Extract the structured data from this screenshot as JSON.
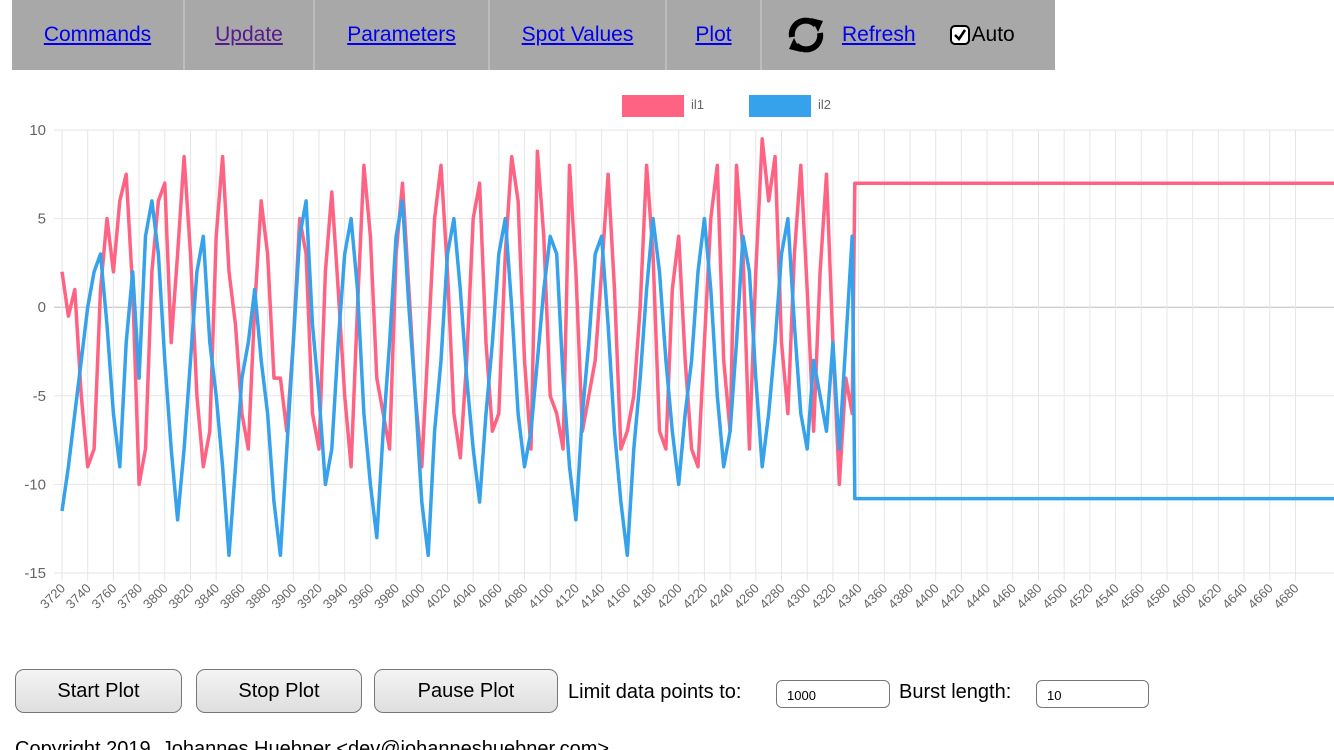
{
  "nav": {
    "items": [
      "Commands",
      "Update",
      "Parameters",
      "Spot Values",
      "Plot"
    ],
    "refresh": "Refresh",
    "auto": "Auto"
  },
  "chart_data": {
    "type": "line",
    "x": [
      3720,
      3725,
      3730,
      3735,
      3740,
      3745,
      3750,
      3755,
      3760,
      3765,
      3770,
      3775,
      3780,
      3785,
      3790,
      3795,
      3800,
      3805,
      3810,
      3815,
      3820,
      3825,
      3830,
      3835,
      3840,
      3845,
      3850,
      3855,
      3860,
      3865,
      3870,
      3875,
      3880,
      3885,
      3890,
      3895,
      3900,
      3905,
      3910,
      3915,
      3920,
      3925,
      3930,
      3935,
      3940,
      3945,
      3950,
      3955,
      3960,
      3965,
      3970,
      3975,
      3980,
      3985,
      3990,
      3995,
      4000,
      4005,
      4010,
      4015,
      4020,
      4025,
      4030,
      4035,
      4040,
      4045,
      4050,
      4055,
      4060,
      4065,
      4070,
      4075,
      4080,
      4085,
      4090,
      4095,
      4100,
      4105,
      4110,
      4115,
      4120,
      4125,
      4130,
      4135,
      4140,
      4145,
      4150,
      4155,
      4160,
      4165,
      4170,
      4175,
      4180,
      4185,
      4190,
      4195,
      4200,
      4205,
      4210,
      4215,
      4220,
      4225,
      4230,
      4235,
      4240,
      4245,
      4250,
      4255,
      4260,
      4265,
      4270,
      4275,
      4280,
      4285,
      4290,
      4295,
      4300,
      4305,
      4310,
      4315,
      4320,
      4325,
      4330,
      4335,
      4337,
      4710
    ],
    "series": [
      {
        "name": "il1",
        "color": "#ff6384",
        "values": [
          2,
          -0.5,
          1,
          -5,
          -9,
          -8,
          1,
          5,
          2,
          6,
          7.5,
          1,
          -10,
          -8,
          2,
          6,
          7,
          -2,
          3,
          8.5,
          3,
          -5,
          -9,
          -7,
          4,
          8.5,
          2,
          -1,
          -6,
          -8,
          0,
          6,
          3,
          -4,
          -4,
          -7,
          -2,
          5,
          3,
          -6,
          -8,
          2,
          6.5,
          1,
          -5,
          -9,
          0,
          8,
          4,
          -4,
          -6,
          -8,
          3,
          7,
          1,
          -5,
          -9,
          -2,
          5,
          8,
          2,
          -6,
          -8.5,
          -3,
          5,
          7,
          -2,
          -7,
          -6,
          3,
          8.5,
          6,
          -3,
          -8,
          8.8,
          4,
          -5,
          -6,
          -8,
          8,
          2,
          -7,
          -5,
          -3,
          2,
          7.5,
          1,
          -8,
          -7,
          -5,
          0,
          8,
          3,
          -7,
          -8,
          1,
          4,
          -3,
          -8,
          -9,
          -2,
          5,
          8,
          -3,
          -7,
          8,
          3,
          -8,
          2,
          9.5,
          6,
          8.5,
          -2,
          -6,
          3,
          8,
          1,
          -7,
          2,
          7.5,
          -2,
          -10,
          -4,
          -6,
          7,
          7
        ]
      },
      {
        "name": "il2",
        "color": "#36a2eb",
        "values": [
          -11.5,
          -9,
          -6,
          -3,
          0,
          2,
          3,
          -1,
          -6,
          -9,
          -2,
          2,
          -4,
          4,
          6,
          3,
          -3,
          -8,
          -12,
          -8,
          -3,
          2,
          4,
          -2,
          -5,
          -9,
          -14,
          -9,
          -4,
          -2,
          1,
          -3,
          -6,
          -11,
          -14,
          -8,
          -2,
          4,
          6,
          -1,
          -5,
          -10,
          -8,
          -2,
          3,
          5,
          1,
          -6,
          -10,
          -13,
          -7,
          -2,
          4,
          6,
          0,
          -5,
          -11,
          -14,
          -7,
          -3,
          3,
          5,
          1,
          -4,
          -8,
          -11,
          -6,
          -2,
          3,
          5,
          0,
          -6,
          -9,
          -7,
          -3,
          1,
          4,
          3,
          -4,
          -9,
          -12,
          -6,
          -2,
          3,
          4,
          -1,
          -7,
          -11,
          -14,
          -8,
          -4,
          1,
          5,
          2,
          -3,
          -7,
          -10,
          -6,
          -3,
          2,
          5,
          1,
          -5,
          -9,
          -7,
          -2,
          4,
          2,
          -4,
          -9,
          -6,
          -2,
          3,
          5,
          -1,
          -6,
          -8,
          -3,
          -5,
          -7,
          -2,
          -8,
          -2,
          4,
          -10.8,
          -10.8
        ]
      }
    ],
    "xlim": [
      3720,
      4710
    ],
    "xticks": [
      3720,
      3740,
      3760,
      3780,
      3800,
      3820,
      3840,
      3860,
      3880,
      3900,
      3920,
      3940,
      3960,
      3980,
      4000,
      4020,
      4040,
      4060,
      4080,
      4100,
      4120,
      4140,
      4160,
      4180,
      4200,
      4220,
      4240,
      4260,
      4280,
      4300,
      4320,
      4340,
      4360,
      4380,
      4400,
      4420,
      4440,
      4460,
      4480,
      4500,
      4520,
      4540,
      4560,
      4580,
      4600,
      4620,
      4640,
      4660,
      4680
    ],
    "ylim": [
      -15,
      10
    ],
    "yticks": [
      -15,
      -10,
      -5,
      0,
      5,
      10
    ],
    "grid": true,
    "legend": "top"
  },
  "controls": {
    "buttons": [
      "Start Plot",
      "Stop Plot",
      "Pause Plot"
    ],
    "limit_label": "Limit data points to:",
    "limit_value": "1000",
    "burst_label": "Burst length:",
    "burst_value": "10"
  },
  "footer": "Copyright 2019, Johannes Huebner <dev@johanneshuebner.com>"
}
